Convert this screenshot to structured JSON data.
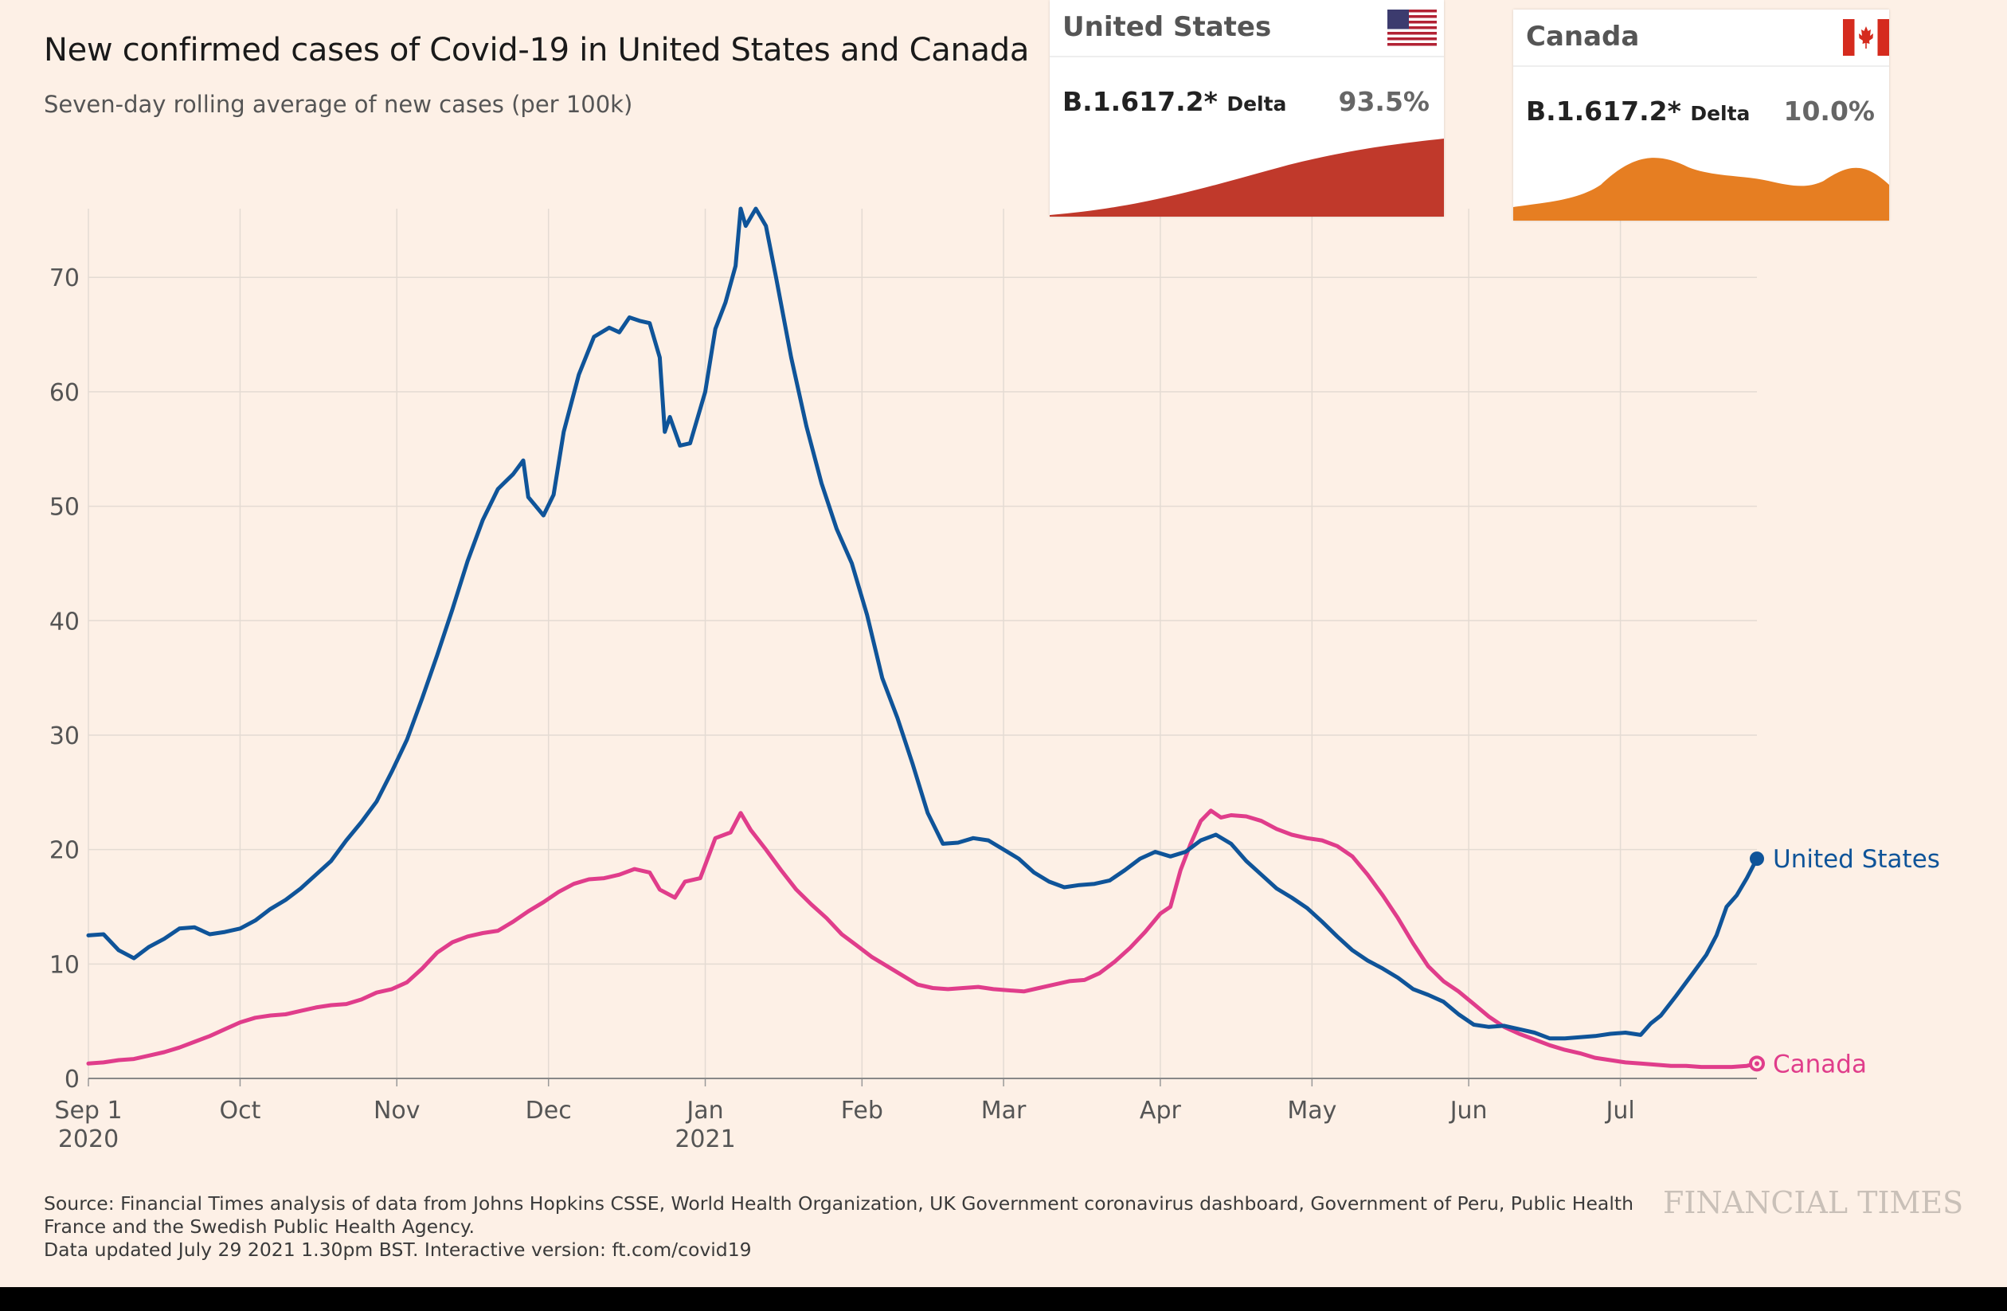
{
  "title": "New confirmed cases of Covid-19 in United States and Canada",
  "subtitle": "Seven-day rolling average of new cases (per 100k)",
  "footer": {
    "source": "Source: Financial Times analysis of data from Johns Hopkins CSSE, World Health Organization, UK Government coronavirus dashboard, Government of Peru, Public Health France and the Swedish Public Health Agency.",
    "updated": "Data updated July 29 2021 1.30pm BST. Interactive version: ft.com/covid19"
  },
  "logo": "FINANCIAL TIMES",
  "variant_cards": [
    {
      "country": "United States",
      "variant": "B.1.617.2*",
      "variant_name": "Delta",
      "share": "93.5%",
      "color": "#c0392b",
      "flag": "us-flag-icon"
    },
    {
      "country": "Canada",
      "variant": "B.1.617.2*",
      "variant_name": "Delta",
      "share": "10.0%",
      "color": "#e67e22",
      "flag": "canada-flag-icon"
    }
  ],
  "chart_data": {
    "type": "line",
    "title": "New confirmed cases of Covid-19 in United States and Canada",
    "ylabel": "Seven-day rolling average of new cases (per 100k)",
    "ylim": [
      0,
      76
    ],
    "yticks": [
      0,
      10,
      20,
      30,
      40,
      50,
      60,
      70
    ],
    "xlim": [
      "2020-09-01",
      "2021-07-28"
    ],
    "xticks": [
      {
        "date": "2020-09-01",
        "label": "Sep 1",
        "sublabel": "2020"
      },
      {
        "date": "2020-10-01",
        "label": "Oct",
        "sublabel": ""
      },
      {
        "date": "2020-11-01",
        "label": "Nov",
        "sublabel": ""
      },
      {
        "date": "2020-12-01",
        "label": "Dec",
        "sublabel": ""
      },
      {
        "date": "2021-01-01",
        "label": "Jan",
        "sublabel": "2021"
      },
      {
        "date": "2021-02-01",
        "label": "Feb",
        "sublabel": ""
      },
      {
        "date": "2021-03-01",
        "label": "Mar",
        "sublabel": ""
      },
      {
        "date": "2021-04-01",
        "label": "Apr",
        "sublabel": ""
      },
      {
        "date": "2021-05-01",
        "label": "May",
        "sublabel": ""
      },
      {
        "date": "2021-06-01",
        "label": "Jun",
        "sublabel": ""
      },
      {
        "date": "2021-07-01",
        "label": "Jul",
        "sublabel": ""
      }
    ],
    "grid": true,
    "series": [
      {
        "name": "United States",
        "color": "#0f5499",
        "points": [
          [
            "2020-09-01",
            12.5
          ],
          [
            "2020-09-04",
            12.6
          ],
          [
            "2020-09-07",
            11.2
          ],
          [
            "2020-09-10",
            10.5
          ],
          [
            "2020-09-13",
            11.5
          ],
          [
            "2020-09-16",
            12.2
          ],
          [
            "2020-09-19",
            13.1
          ],
          [
            "2020-09-22",
            13.2
          ],
          [
            "2020-09-25",
            12.6
          ],
          [
            "2020-09-28",
            12.8
          ],
          [
            "2020-10-01",
            13.1
          ],
          [
            "2020-10-04",
            13.8
          ],
          [
            "2020-10-07",
            14.8
          ],
          [
            "2020-10-10",
            15.6
          ],
          [
            "2020-10-13",
            16.6
          ],
          [
            "2020-10-16",
            17.8
          ],
          [
            "2020-10-19",
            19.0
          ],
          [
            "2020-10-22",
            20.8
          ],
          [
            "2020-10-25",
            22.4
          ],
          [
            "2020-10-28",
            24.2
          ],
          [
            "2020-10-31",
            26.8
          ],
          [
            "2020-11-03",
            29.6
          ],
          [
            "2020-11-06",
            33.2
          ],
          [
            "2020-11-09",
            37.0
          ],
          [
            "2020-11-12",
            41.0
          ],
          [
            "2020-11-15",
            45.2
          ],
          [
            "2020-11-18",
            48.8
          ],
          [
            "2020-11-21",
            51.5
          ],
          [
            "2020-11-24",
            52.8
          ],
          [
            "2020-11-26",
            54.0
          ],
          [
            "2020-11-27",
            50.8
          ],
          [
            "2020-11-30",
            49.2
          ],
          [
            "2020-12-02",
            51.0
          ],
          [
            "2020-12-04",
            56.5
          ],
          [
            "2020-12-07",
            61.5
          ],
          [
            "2020-12-10",
            64.8
          ],
          [
            "2020-12-13",
            65.6
          ],
          [
            "2020-12-15",
            65.2
          ],
          [
            "2020-12-17",
            66.5
          ],
          [
            "2020-12-19",
            66.2
          ],
          [
            "2020-12-21",
            66.0
          ],
          [
            "2020-12-23",
            63.0
          ],
          [
            "2020-12-24",
            56.5
          ],
          [
            "2020-12-25",
            57.8
          ],
          [
            "2020-12-27",
            55.3
          ],
          [
            "2020-12-29",
            55.5
          ],
          [
            "2021-01-01",
            60.0
          ],
          [
            "2021-01-03",
            65.5
          ],
          [
            "2021-01-05",
            67.8
          ],
          [
            "2021-01-07",
            71.0
          ],
          [
            "2021-01-08",
            76.0
          ],
          [
            "2021-01-09",
            74.5
          ],
          [
            "2021-01-11",
            76.0
          ],
          [
            "2021-01-13",
            74.5
          ],
          [
            "2021-01-15",
            70.0
          ],
          [
            "2021-01-18",
            63.0
          ],
          [
            "2021-01-21",
            57.0
          ],
          [
            "2021-01-24",
            52.0
          ],
          [
            "2021-01-27",
            48.0
          ],
          [
            "2021-01-30",
            45.0
          ],
          [
            "2021-02-02",
            40.5
          ],
          [
            "2021-02-05",
            35.0
          ],
          [
            "2021-02-08",
            31.5
          ],
          [
            "2021-02-11",
            27.5
          ],
          [
            "2021-02-14",
            23.2
          ],
          [
            "2021-02-17",
            20.5
          ],
          [
            "2021-02-20",
            20.6
          ],
          [
            "2021-02-23",
            21.0
          ],
          [
            "2021-02-26",
            20.8
          ],
          [
            "2021-03-01",
            20.0
          ],
          [
            "2021-03-04",
            19.2
          ],
          [
            "2021-03-07",
            18.0
          ],
          [
            "2021-03-10",
            17.2
          ],
          [
            "2021-03-13",
            16.7
          ],
          [
            "2021-03-16",
            16.9
          ],
          [
            "2021-03-19",
            17.0
          ],
          [
            "2021-03-22",
            17.3
          ],
          [
            "2021-03-25",
            18.2
          ],
          [
            "2021-03-28",
            19.2
          ],
          [
            "2021-03-31",
            19.8
          ],
          [
            "2021-04-03",
            19.4
          ],
          [
            "2021-04-06",
            19.8
          ],
          [
            "2021-04-09",
            20.8
          ],
          [
            "2021-04-12",
            21.3
          ],
          [
            "2021-04-15",
            20.5
          ],
          [
            "2021-04-18",
            19.0
          ],
          [
            "2021-04-21",
            17.8
          ],
          [
            "2021-04-24",
            16.6
          ],
          [
            "2021-04-27",
            15.8
          ],
          [
            "2021-04-30",
            14.9
          ],
          [
            "2021-05-03",
            13.7
          ],
          [
            "2021-05-06",
            12.4
          ],
          [
            "2021-05-09",
            11.2
          ],
          [
            "2021-05-12",
            10.3
          ],
          [
            "2021-05-15",
            9.6
          ],
          [
            "2021-05-18",
            8.8
          ],
          [
            "2021-05-21",
            7.8
          ],
          [
            "2021-05-24",
            7.3
          ],
          [
            "2021-05-27",
            6.7
          ],
          [
            "2021-05-30",
            5.6
          ],
          [
            "2021-06-02",
            4.7
          ],
          [
            "2021-06-05",
            4.5
          ],
          [
            "2021-06-08",
            4.6
          ],
          [
            "2021-06-11",
            4.3
          ],
          [
            "2021-06-14",
            4.0
          ],
          [
            "2021-06-17",
            3.5
          ],
          [
            "2021-06-20",
            3.5
          ],
          [
            "2021-06-23",
            3.6
          ],
          [
            "2021-06-26",
            3.7
          ],
          [
            "2021-06-29",
            3.9
          ],
          [
            "2021-07-02",
            4.0
          ],
          [
            "2021-07-05",
            3.8
          ],
          [
            "2021-07-07",
            4.8
          ],
          [
            "2021-07-09",
            5.5
          ],
          [
            "2021-07-12",
            7.2
          ],
          [
            "2021-07-15",
            9.0
          ],
          [
            "2021-07-18",
            10.8
          ],
          [
            "2021-07-20",
            12.5
          ],
          [
            "2021-07-22",
            15.0
          ],
          [
            "2021-07-24",
            16.0
          ],
          [
            "2021-07-26",
            17.5
          ],
          [
            "2021-07-28",
            19.2
          ]
        ]
      },
      {
        "name": "Canada",
        "color": "#e03d8b",
        "points": [
          [
            "2020-09-01",
            1.3
          ],
          [
            "2020-09-04",
            1.4
          ],
          [
            "2020-09-07",
            1.6
          ],
          [
            "2020-09-10",
            1.7
          ],
          [
            "2020-09-13",
            2.0
          ],
          [
            "2020-09-16",
            2.3
          ],
          [
            "2020-09-19",
            2.7
          ],
          [
            "2020-09-22",
            3.2
          ],
          [
            "2020-09-25",
            3.7
          ],
          [
            "2020-09-28",
            4.3
          ],
          [
            "2020-10-01",
            4.9
          ],
          [
            "2020-10-04",
            5.3
          ],
          [
            "2020-10-07",
            5.5
          ],
          [
            "2020-10-10",
            5.6
          ],
          [
            "2020-10-13",
            5.9
          ],
          [
            "2020-10-16",
            6.2
          ],
          [
            "2020-10-19",
            6.4
          ],
          [
            "2020-10-22",
            6.5
          ],
          [
            "2020-10-25",
            6.9
          ],
          [
            "2020-10-28",
            7.5
          ],
          [
            "2020-10-31",
            7.8
          ],
          [
            "2020-11-03",
            8.4
          ],
          [
            "2020-11-06",
            9.6
          ],
          [
            "2020-11-09",
            11.0
          ],
          [
            "2020-11-12",
            11.9
          ],
          [
            "2020-11-15",
            12.4
          ],
          [
            "2020-11-18",
            12.7
          ],
          [
            "2020-11-21",
            12.9
          ],
          [
            "2020-11-24",
            13.7
          ],
          [
            "2020-11-27",
            14.6
          ],
          [
            "2020-11-30",
            15.4
          ],
          [
            "2020-12-03",
            16.3
          ],
          [
            "2020-12-06",
            17.0
          ],
          [
            "2020-12-09",
            17.4
          ],
          [
            "2020-12-12",
            17.5
          ],
          [
            "2020-12-15",
            17.8
          ],
          [
            "2020-12-18",
            18.3
          ],
          [
            "2020-12-21",
            18.0
          ],
          [
            "2020-12-23",
            16.5
          ],
          [
            "2020-12-26",
            15.8
          ],
          [
            "2020-12-28",
            17.2
          ],
          [
            "2020-12-31",
            17.5
          ],
          [
            "2021-01-03",
            21.0
          ],
          [
            "2021-01-06",
            21.5
          ],
          [
            "2021-01-08",
            23.2
          ],
          [
            "2021-01-10",
            21.7
          ],
          [
            "2021-01-13",
            20.0
          ],
          [
            "2021-01-16",
            18.2
          ],
          [
            "2021-01-19",
            16.5
          ],
          [
            "2021-01-22",
            15.2
          ],
          [
            "2021-01-25",
            14.0
          ],
          [
            "2021-01-28",
            12.6
          ],
          [
            "2021-01-31",
            11.6
          ],
          [
            "2021-02-03",
            10.6
          ],
          [
            "2021-02-06",
            9.8
          ],
          [
            "2021-02-09",
            9.0
          ],
          [
            "2021-02-12",
            8.2
          ],
          [
            "2021-02-15",
            7.9
          ],
          [
            "2021-02-18",
            7.8
          ],
          [
            "2021-02-21",
            7.9
          ],
          [
            "2021-02-24",
            8.0
          ],
          [
            "2021-02-27",
            7.8
          ],
          [
            "2021-03-02",
            7.7
          ],
          [
            "2021-03-05",
            7.6
          ],
          [
            "2021-03-08",
            7.9
          ],
          [
            "2021-03-11",
            8.2
          ],
          [
            "2021-03-14",
            8.5
          ],
          [
            "2021-03-17",
            8.6
          ],
          [
            "2021-03-20",
            9.2
          ],
          [
            "2021-03-23",
            10.2
          ],
          [
            "2021-03-26",
            11.4
          ],
          [
            "2021-03-29",
            12.8
          ],
          [
            "2021-04-01",
            14.4
          ],
          [
            "2021-04-03",
            15.0
          ],
          [
            "2021-04-05",
            18.2
          ],
          [
            "2021-04-07",
            20.5
          ],
          [
            "2021-04-09",
            22.5
          ],
          [
            "2021-04-11",
            23.4
          ],
          [
            "2021-04-13",
            22.8
          ],
          [
            "2021-04-15",
            23.0
          ],
          [
            "2021-04-18",
            22.9
          ],
          [
            "2021-04-21",
            22.5
          ],
          [
            "2021-04-24",
            21.8
          ],
          [
            "2021-04-27",
            21.3
          ],
          [
            "2021-04-30",
            21.0
          ],
          [
            "2021-05-03",
            20.8
          ],
          [
            "2021-05-06",
            20.3
          ],
          [
            "2021-05-09",
            19.4
          ],
          [
            "2021-05-12",
            17.8
          ],
          [
            "2021-05-15",
            16.0
          ],
          [
            "2021-05-18",
            14.0
          ],
          [
            "2021-05-21",
            11.8
          ],
          [
            "2021-05-24",
            9.8
          ],
          [
            "2021-05-27",
            8.5
          ],
          [
            "2021-05-30",
            7.6
          ],
          [
            "2021-06-02",
            6.5
          ],
          [
            "2021-06-05",
            5.4
          ],
          [
            "2021-06-08",
            4.5
          ],
          [
            "2021-06-11",
            3.9
          ],
          [
            "2021-06-14",
            3.4
          ],
          [
            "2021-06-17",
            2.9
          ],
          [
            "2021-06-20",
            2.5
          ],
          [
            "2021-06-23",
            2.2
          ],
          [
            "2021-06-26",
            1.8
          ],
          [
            "2021-06-29",
            1.6
          ],
          [
            "2021-07-02",
            1.4
          ],
          [
            "2021-07-05",
            1.3
          ],
          [
            "2021-07-08",
            1.2
          ],
          [
            "2021-07-11",
            1.1
          ],
          [
            "2021-07-14",
            1.1
          ],
          [
            "2021-07-17",
            1.0
          ],
          [
            "2021-07-20",
            1.0
          ],
          [
            "2021-07-23",
            1.0
          ],
          [
            "2021-07-26",
            1.1
          ],
          [
            "2021-07-28",
            1.3
          ]
        ]
      }
    ]
  },
  "colors": {
    "background": "#fdf0e6",
    "grid": "#e4dbd3",
    "axis": "#888888"
  }
}
